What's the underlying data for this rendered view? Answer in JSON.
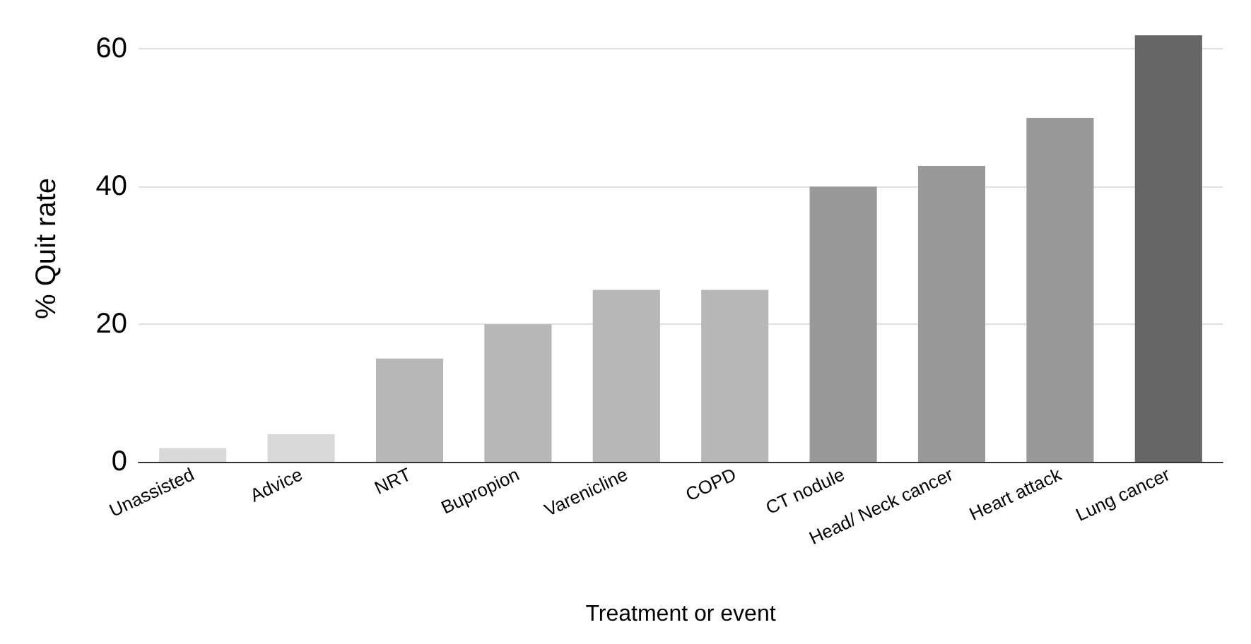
{
  "chart_data": {
    "type": "bar",
    "xlabel": "Treatment or event",
    "ylabel": "% Quit rate",
    "categories": [
      "Unassisted",
      "Advice",
      "NRT",
      "Bupropion",
      "Varenicline",
      "COPD",
      "CT nodule",
      "Head/ Neck cancer",
      "Heart attack",
      "Lung cancer"
    ],
    "values": [
      2,
      4,
      15,
      20,
      25,
      25,
      40,
      43,
      50,
      62
    ],
    "colors": [
      "#d9d9d9",
      "#d9d9d9",
      "#b7b7b7",
      "#b7b7b7",
      "#b7b7b7",
      "#b7b7b7",
      "#999999",
      "#999999",
      "#999999",
      "#666666"
    ],
    "ylim": [
      0,
      62
    ],
    "yticks": [
      0,
      20,
      40,
      60
    ],
    "grid": "y"
  }
}
